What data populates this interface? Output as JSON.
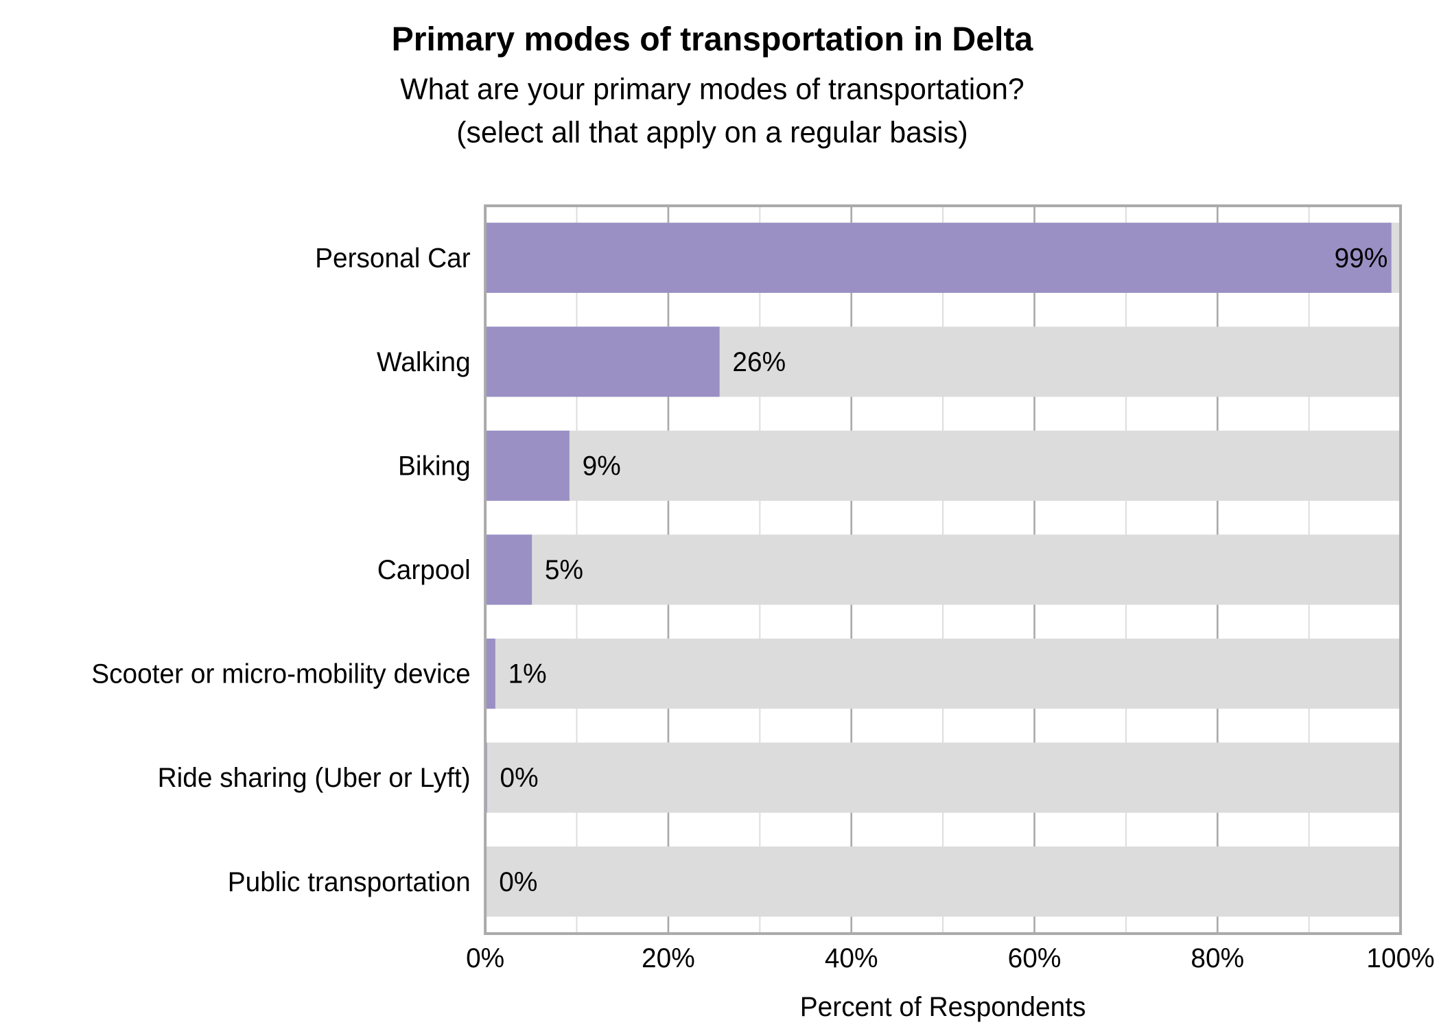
{
  "chart_data": {
    "type": "bar",
    "orientation": "horizontal",
    "title": "Primary modes of transportation in Delta",
    "subtitle_lines": [
      "What are your primary modes of transportation?",
      "(select all that apply on a regular basis)"
    ],
    "xlabel": "Percent of Respondents",
    "ylabel": "",
    "xlim": [
      0,
      100
    ],
    "x_ticks": [
      0,
      20,
      40,
      60,
      80,
      100
    ],
    "x_tick_labels": [
      "0%",
      "20%",
      "40%",
      "60%",
      "80%",
      "100%"
    ],
    "grid": true,
    "categories": [
      "Personal Car",
      "Walking",
      "Biking",
      "Carpool",
      "Scooter or micro-mobility device",
      "Ride sharing (Uber or Lyft)",
      "Public transportation"
    ],
    "values": [
      99,
      25.6,
      9.2,
      5.1,
      1.1,
      0.2,
      0.1
    ],
    "data_labels": [
      "99%",
      "26%",
      "9%",
      "5%",
      "1%",
      "0%",
      "0%"
    ],
    "colors": {
      "bar": "#9a90c4",
      "background_bar": "#dcdcdc",
      "grid_major": "#aaaaaa",
      "grid_minor": "#dddddd",
      "frame": "#aaaaaa"
    }
  }
}
